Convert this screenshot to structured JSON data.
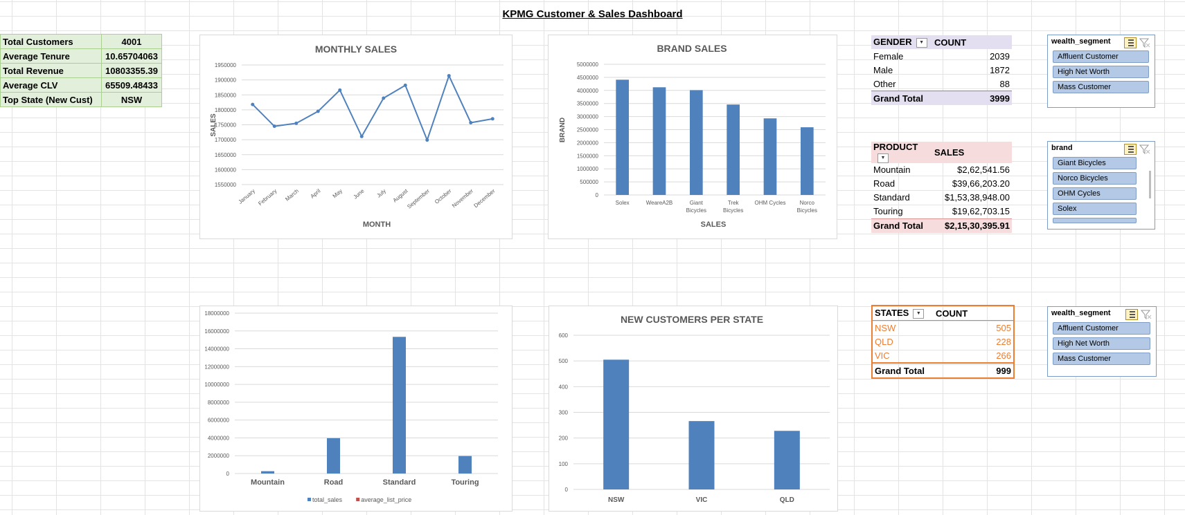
{
  "dashboard": {
    "title": "KPMG Customer & Sales Dashboard"
  },
  "kpis": [
    {
      "label": "Total Customers",
      "value": "4001"
    },
    {
      "label": "Average Tenure",
      "value": "10.65704063"
    },
    {
      "label": "Total Revenue",
      "value": "10803355.39"
    },
    {
      "label": "Average CLV",
      "value": "65509.48433"
    },
    {
      "label": "Top State (New Cust)",
      "value": "NSW"
    }
  ],
  "chart_data": [
    {
      "type": "line",
      "title": "MONTHLY SALES",
      "xlabel": "MONTH",
      "ylabel": "SALES",
      "categories": [
        "January",
        "February",
        "March",
        "April",
        "May",
        "June",
        "July",
        "August",
        "September",
        "October",
        "November",
        "December"
      ],
      "values": [
        1818000,
        1745000,
        1755000,
        1795000,
        1866000,
        1711000,
        1839000,
        1882000,
        1699000,
        1914000,
        1757000,
        1770000
      ],
      "ylim": [
        1550000,
        1950000
      ],
      "yticks": [
        "1950000",
        "1900000",
        "1850000",
        "1800000",
        "1750000",
        "1700000",
        "1650000",
        "1600000",
        "1550000"
      ],
      "color": "#4f81bd",
      "grid": true
    },
    {
      "type": "bar",
      "title": "BRAND SALES",
      "xlabel": "SALES",
      "ylabel": "BRAND",
      "categories": [
        "Solex",
        "WeareA2B",
        "Giant Bicycles",
        "Trek Bicycles",
        "OHM Cycles",
        "Norco Bicycles"
      ],
      "values": [
        4410000,
        4120000,
        4010000,
        3460000,
        2930000,
        2590000
      ],
      "ylim": [
        0,
        5000000
      ],
      "yticks": [
        "5000000",
        "4500000",
        "4000000",
        "3500000",
        "3000000",
        "2500000",
        "2000000",
        "1500000",
        "1000000",
        "500000",
        "0"
      ],
      "color": "#4f81bd",
      "grid": true
    },
    {
      "type": "bar",
      "title": "",
      "xlabel": "",
      "ylabel": "",
      "categories": [
        "Mountain",
        "Road",
        "Standard",
        "Touring"
      ],
      "series": [
        {
          "name": "total_sales",
          "color": "#4f81bd",
          "values": [
            262541.56,
            3966203.2,
            15338948.0,
            1962703.15
          ]
        },
        {
          "name": "average_list_price",
          "color": "#c0504d",
          "values": [
            0,
            0,
            0,
            0
          ]
        }
      ],
      "ylim": [
        0,
        18000000
      ],
      "yticks": [
        "18000000",
        "16000000",
        "14000000",
        "12000000",
        "10000000",
        "8000000",
        "6000000",
        "4000000",
        "2000000",
        "0"
      ],
      "legend": "bottom",
      "grid": true
    },
    {
      "type": "bar",
      "title": "NEW CUSTOMERS PER STATE",
      "xlabel": "",
      "ylabel": "",
      "categories": [
        "NSW",
        "VIC",
        "QLD"
      ],
      "values": [
        505,
        266,
        228
      ],
      "ylim": [
        0,
        600
      ],
      "yticks": [
        "600",
        "500",
        "400",
        "300",
        "200",
        "100",
        "0"
      ],
      "color": "#4f81bd",
      "grid": true
    }
  ],
  "pivots": {
    "gender": {
      "headers": [
        "GENDER",
        "COUNT"
      ],
      "rows": [
        [
          "Female",
          "2039"
        ],
        [
          "Male",
          "1872"
        ],
        [
          "Other",
          "88"
        ]
      ],
      "total": [
        "Grand Total",
        "3999"
      ]
    },
    "product": {
      "headers": [
        "PRODUCT",
        "SALES"
      ],
      "rows": [
        [
          "Mountain",
          "$2,62,541.56"
        ],
        [
          "Road",
          "$39,66,203.20"
        ],
        [
          "Standard",
          "$1,53,38,948.00"
        ],
        [
          "Touring",
          "$19,62,703.15"
        ]
      ],
      "total": [
        "Grand Total",
        "$2,15,30,395.91"
      ]
    },
    "states": {
      "headers": [
        "STATES",
        "COUNT"
      ],
      "rows": [
        [
          "NSW",
          "505"
        ],
        [
          "QLD",
          "228"
        ],
        [
          "VIC",
          "266"
        ]
      ],
      "total": [
        "Grand Total",
        "999"
      ]
    }
  },
  "slicers": {
    "wealth1": {
      "title": "wealth_segment",
      "items": [
        "Affluent Customer",
        "High Net Worth",
        "Mass Customer"
      ]
    },
    "brand": {
      "title": "brand",
      "items": [
        "Giant Bicycles",
        "Norco Bicycles",
        "OHM Cycles",
        "Solex"
      ]
    },
    "wealth2": {
      "title": "wealth_segment",
      "items": [
        "Affluent Customer",
        "High Net Worth",
        "Mass Customer"
      ]
    }
  }
}
